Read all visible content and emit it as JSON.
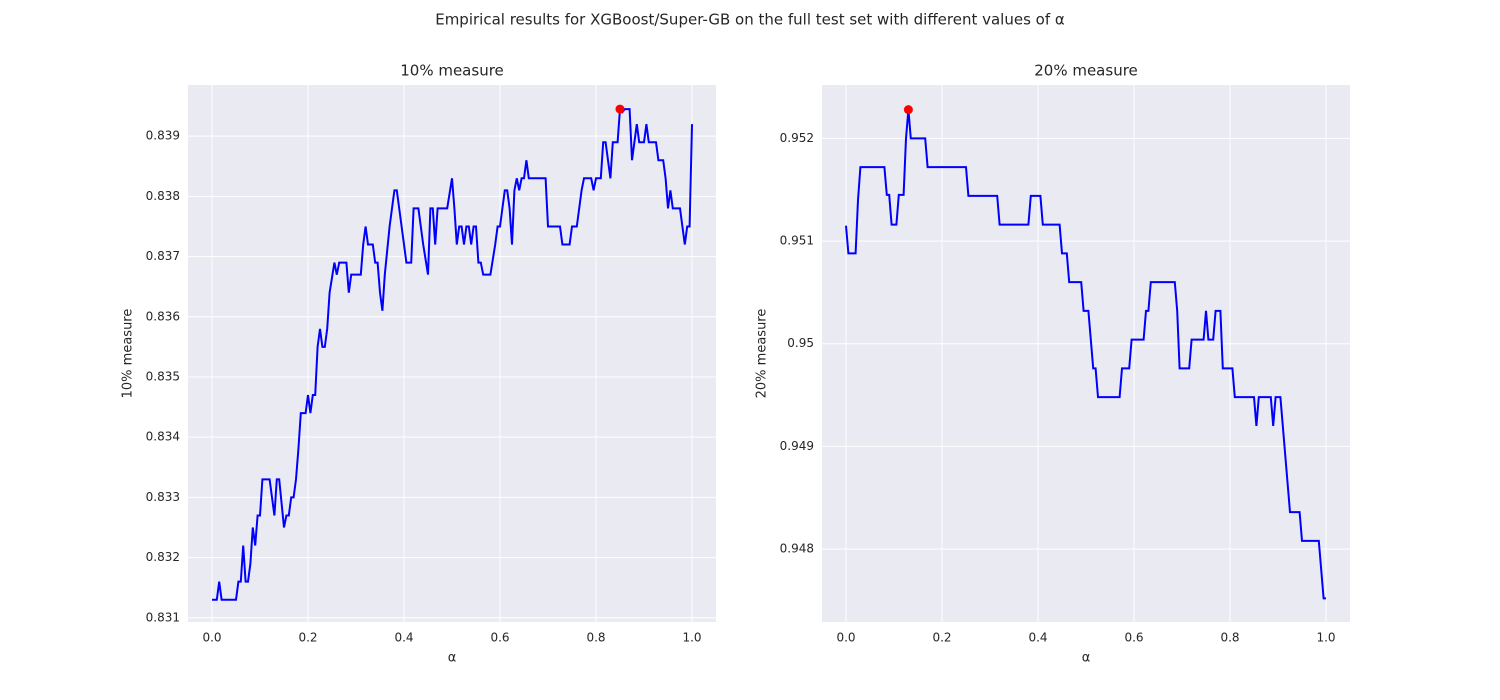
{
  "title": "Empirical results for XGBoost/Super-GB on the full test set with different values of α",
  "chart_data": [
    {
      "type": "line",
      "title": "10% measure",
      "xlabel": "α",
      "ylabel": "10% measure",
      "color": "blue",
      "grid": true,
      "xlim": [
        -0.05,
        1.05
      ],
      "ylim": [
        0.83093,
        0.83985
      ],
      "xticks": [
        {
          "value": 0,
          "label": "0.0"
        },
        0.2,
        0.4,
        0.6,
        0.8,
        {
          "value": 1,
          "label": "1.0"
        }
      ],
      "yticks": [
        0.831,
        0.832,
        0.833,
        0.834,
        0.835,
        0.836,
        0.837,
        0.838,
        0.839
      ],
      "x": [
        0,
        0.01,
        0.015,
        0.02,
        0.05,
        0.055,
        0.06,
        0.065,
        0.07,
        0.075,
        0.08,
        0.085,
        0.09,
        0.095,
        0.1,
        0.105,
        0.12,
        0.13,
        0.135,
        0.14,
        0.15,
        0.155,
        0.16,
        0.165,
        0.17,
        0.175,
        0.18,
        0.185,
        0.195,
        0.2,
        0.205,
        0.21,
        0.215,
        0.22,
        0.225,
        0.23,
        0.235,
        0.24,
        0.245,
        0.255,
        0.26,
        0.265,
        0.28,
        0.285,
        0.29,
        0.31,
        0.315,
        0.32,
        0.325,
        0.335,
        0.34,
        0.345,
        0.35,
        0.355,
        0.36,
        0.37,
        0.38,
        0.385,
        0.39,
        0.4,
        0.405,
        0.415,
        0.42,
        0.43,
        0.435,
        0.44,
        0.45,
        0.455,
        0.46,
        0.465,
        0.47,
        0.49,
        0.5,
        0.505,
        0.51,
        0.515,
        0.52,
        0.525,
        0.53,
        0.535,
        0.54,
        0.545,
        0.55,
        0.555,
        0.56,
        0.565,
        0.58,
        0.59,
        0.595,
        0.6,
        0.605,
        0.61,
        0.615,
        0.62,
        0.625,
        0.63,
        0.635,
        0.64,
        0.645,
        0.65,
        0.655,
        0.66,
        0.695,
        0.7,
        0.725,
        0.73,
        0.745,
        0.75,
        0.76,
        0.765,
        0.77,
        0.775,
        0.79,
        0.795,
        0.8,
        0.81,
        0.815,
        0.82,
        0.83,
        0.835,
        0.845,
        0.85,
        0.855,
        0.86,
        0.87,
        0.875,
        0.88,
        0.885,
        0.89,
        0.9,
        0.905,
        0.91,
        0.925,
        0.93,
        0.94,
        0.945,
        0.95,
        0.955,
        0.96,
        0.975,
        0.98,
        0.985,
        0.99,
        0.995,
        1.0
      ],
      "values": [
        0.8313,
        0.8313,
        0.8316,
        0.8313,
        0.8313,
        0.8316,
        0.8316,
        0.8322,
        0.8316,
        0.8316,
        0.8319,
        0.8325,
        0.8322,
        0.8327,
        0.8327,
        0.8333,
        0.8333,
        0.8327,
        0.8333,
        0.8333,
        0.8325,
        0.8327,
        0.8327,
        0.833,
        0.833,
        0.8333,
        0.8338,
        0.8344,
        0.8344,
        0.8347,
        0.8344,
        0.8347,
        0.8347,
        0.8355,
        0.8358,
        0.8355,
        0.8355,
        0.8358,
        0.8364,
        0.8369,
        0.8367,
        0.8369,
        0.8369,
        0.8364,
        0.8367,
        0.8367,
        0.8372,
        0.8375,
        0.8372,
        0.8372,
        0.8369,
        0.8369,
        0.8364,
        0.8361,
        0.8367,
        0.8375,
        0.8381,
        0.8381,
        0.8378,
        0.8372,
        0.8369,
        0.8369,
        0.8378,
        0.8378,
        0.8375,
        0.8372,
        0.8367,
        0.8378,
        0.8378,
        0.8372,
        0.8378,
        0.8378,
        0.8383,
        0.8378,
        0.8372,
        0.8375,
        0.8375,
        0.8372,
        0.8375,
        0.8375,
        0.8372,
        0.8375,
        0.8375,
        0.8369,
        0.8369,
        0.8367,
        0.8367,
        0.8372,
        0.8375,
        0.8375,
        0.8378,
        0.8381,
        0.8381,
        0.8378,
        0.8372,
        0.8381,
        0.8383,
        0.8381,
        0.8383,
        0.8383,
        0.8386,
        0.8383,
        0.8383,
        0.8375,
        0.8375,
        0.8372,
        0.8372,
        0.8375,
        0.8375,
        0.8378,
        0.8381,
        0.8383,
        0.8383,
        0.8381,
        0.8383,
        0.8383,
        0.8389,
        0.8389,
        0.8383,
        0.8389,
        0.8389,
        0.83945,
        0.8394,
        0.83945,
        0.83945,
        0.8386,
        0.8389,
        0.8392,
        0.8389,
        0.8389,
        0.8392,
        0.8389,
        0.8389,
        0.8386,
        0.8386,
        0.8383,
        0.8378,
        0.8381,
        0.8378,
        0.8378,
        0.8375,
        0.8372,
        0.8375,
        0.8375,
        0.8392
      ],
      "highlight": {
        "x": 0.85,
        "y": 0.83945,
        "color": "red"
      }
    },
    {
      "type": "line",
      "title": "20% measure",
      "xlabel": "α",
      "ylabel": "20% measure",
      "color": "blue",
      "grid": true,
      "xlim": [
        -0.05,
        1.05
      ],
      "ylim": [
        0.94729,
        0.95252
      ],
      "xticks": [
        {
          "value": 0,
          "label": "0.0"
        },
        0.2,
        0.4,
        0.6,
        0.8,
        {
          "value": 1,
          "label": "1.0"
        }
      ],
      "yticks": [
        0.948,
        0.949,
        0.95,
        0.951,
        0.952
      ],
      "x": [
        0,
        0.005,
        0.02,
        0.025,
        0.03,
        0.08,
        0.085,
        0.09,
        0.095,
        0.105,
        0.11,
        0.12,
        0.125,
        0.13,
        0.135,
        0.165,
        0.17,
        0.25,
        0.255,
        0.315,
        0.32,
        0.38,
        0.385,
        0.405,
        0.41,
        0.445,
        0.45,
        0.46,
        0.465,
        0.49,
        0.495,
        0.505,
        0.51,
        0.515,
        0.52,
        0.525,
        0.57,
        0.575,
        0.59,
        0.595,
        0.62,
        0.625,
        0.63,
        0.635,
        0.685,
        0.69,
        0.695,
        0.715,
        0.72,
        0.745,
        0.75,
        0.755,
        0.765,
        0.77,
        0.78,
        0.785,
        0.805,
        0.81,
        0.85,
        0.855,
        0.86,
        0.885,
        0.89,
        0.895,
        0.905,
        0.925,
        0.945,
        0.95,
        0.985,
        0.995,
        1.0
      ],
      "values": [
        0.95115,
        0.95088,
        0.95088,
        0.9514,
        0.95172,
        0.95172,
        0.95145,
        0.95145,
        0.95116,
        0.95116,
        0.95145,
        0.95145,
        0.952,
        0.95228,
        0.952,
        0.952,
        0.95172,
        0.95172,
        0.95144,
        0.95144,
        0.95116,
        0.95116,
        0.95144,
        0.95144,
        0.95116,
        0.95116,
        0.95088,
        0.95088,
        0.9506,
        0.9506,
        0.95032,
        0.95032,
        0.95004,
        0.94976,
        0.94976,
        0.94948,
        0.94948,
        0.94976,
        0.94976,
        0.95004,
        0.95004,
        0.95032,
        0.95032,
        0.9506,
        0.9506,
        0.95032,
        0.94976,
        0.94976,
        0.95004,
        0.95004,
        0.95032,
        0.95004,
        0.95004,
        0.95032,
        0.95032,
        0.94976,
        0.94976,
        0.94948,
        0.94948,
        0.9492,
        0.94948,
        0.94948,
        0.9492,
        0.94948,
        0.94948,
        0.94836,
        0.94836,
        0.94808,
        0.94808,
        0.94752,
        0.94752
      ],
      "highlight": {
        "x": 0.13,
        "y": 0.95228,
        "color": "red"
      }
    }
  ]
}
